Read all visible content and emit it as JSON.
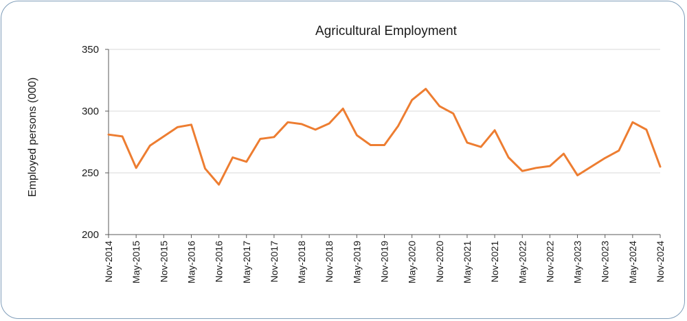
{
  "chart_data": {
    "type": "line",
    "title": "Agricultural Employment",
    "xlabel": "",
    "ylabel": "Employed persons (000)",
    "ylim": [
      200,
      350
    ],
    "yticks": [
      200,
      250,
      300,
      350
    ],
    "grid": true,
    "color": "#ED7D31",
    "x": [
      "Nov-2014",
      "Feb-2015",
      "May-2015",
      "Aug-2015",
      "Nov-2015",
      "Feb-2016",
      "May-2016",
      "Aug-2016",
      "Nov-2016",
      "Feb-2017",
      "May-2017",
      "Aug-2017",
      "Nov-2017",
      "Feb-2018",
      "May-2018",
      "Aug-2018",
      "Nov-2018",
      "Feb-2019",
      "May-2019",
      "Aug-2019",
      "Nov-2019",
      "Feb-2020",
      "May-2020",
      "Aug-2020",
      "Nov-2020",
      "Feb-2021",
      "May-2021",
      "Aug-2021",
      "Nov-2021",
      "Feb-2022",
      "May-2022",
      "Aug-2022",
      "Nov-2022",
      "Feb-2023",
      "May-2023",
      "Aug-2023",
      "Nov-2023",
      "Feb-2024",
      "May-2024",
      "Aug-2024",
      "Nov-2024"
    ],
    "xtick_labels": [
      "Nov-2014",
      "May-2015",
      "Nov-2015",
      "May-2016",
      "Nov-2016",
      "May-2017",
      "Nov-2017",
      "May-2018",
      "Nov-2018",
      "May-2019",
      "Nov-2019",
      "May-2020",
      "Nov-2020",
      "May-2021",
      "Nov-2021",
      "May-2022",
      "Nov-2022",
      "May-2023",
      "Nov-2023",
      "May-2024",
      "Nov-2024"
    ],
    "series": [
      {
        "values": [
          281,
          279.5,
          254,
          272,
          279.5,
          287,
          289,
          253.5,
          240.5,
          262.5,
          259,
          277.5,
          279,
          291,
          289.5,
          285,
          290,
          302,
          280.5,
          272.5,
          272.5,
          288,
          309,
          318,
          304,
          298,
          274.5,
          271,
          284.5,
          262.5,
          251.5,
          254,
          255.5,
          265.5,
          248,
          255,
          262,
          268,
          291,
          285,
          255
        ]
      }
    ]
  }
}
